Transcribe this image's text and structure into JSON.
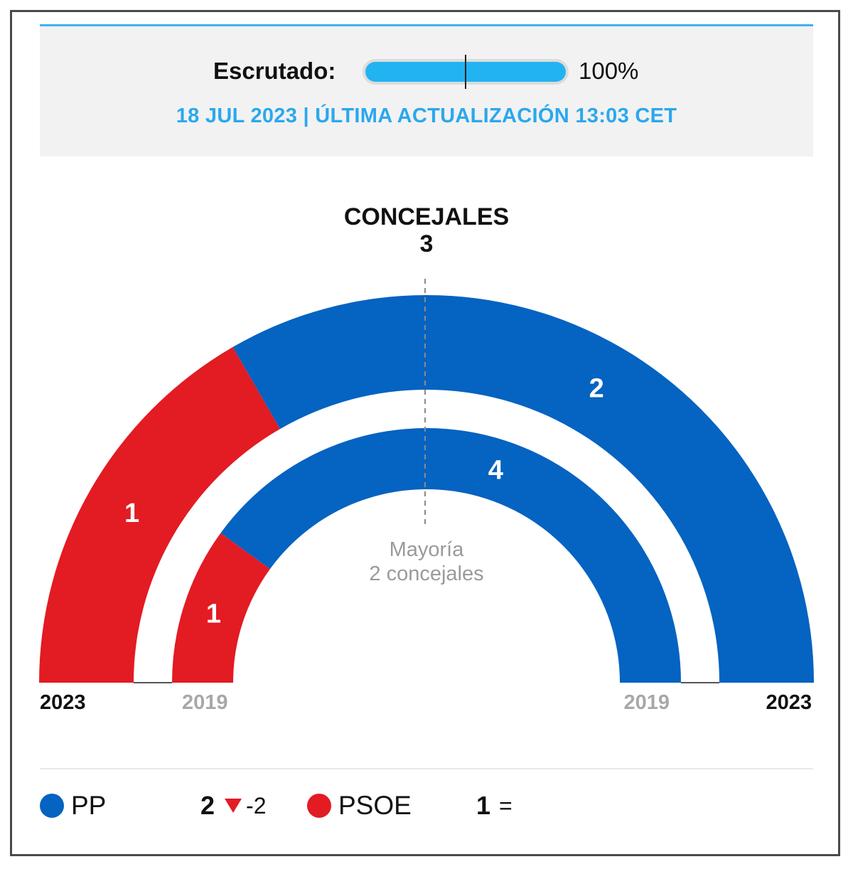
{
  "header": {
    "scrutiny_label": "Escrutado:",
    "scrutiny_value": 100,
    "scrutiny_pct_text": "100%",
    "updated_text": "18 JUL 2023 | ÚLTIMA ACTUALIZACIÓN 13:03 CET"
  },
  "chart_data": {
    "type": "parliament-hemicycle",
    "title": "CONCEJALES",
    "total_seats": "3",
    "majority_line1": "Mayoría",
    "majority_line2": "2 concejales",
    "rings": [
      {
        "year": "2023",
        "segments": [
          {
            "party": "PSOE",
            "seats": 1,
            "color": "#e31b23"
          },
          {
            "party": "PP",
            "seats": 2,
            "color": "#0563c1"
          }
        ]
      },
      {
        "year": "2019",
        "segments": [
          {
            "party": "PSOE",
            "seats": 1,
            "color": "#e31b23"
          },
          {
            "party": "PP",
            "seats": 4,
            "color": "#0563c1"
          }
        ]
      }
    ],
    "year_labels": {
      "outer_left": "2023",
      "inner_left": "2019",
      "inner_right": "2019",
      "outer_right": "2023"
    }
  },
  "legend": [
    {
      "party": "PP",
      "color": "#0563c1",
      "seats": "2",
      "change": "-2",
      "trend": "down"
    },
    {
      "party": "PSOE",
      "color": "#e31b23",
      "seats": "1",
      "change": "=",
      "trend": "equal"
    }
  ]
}
